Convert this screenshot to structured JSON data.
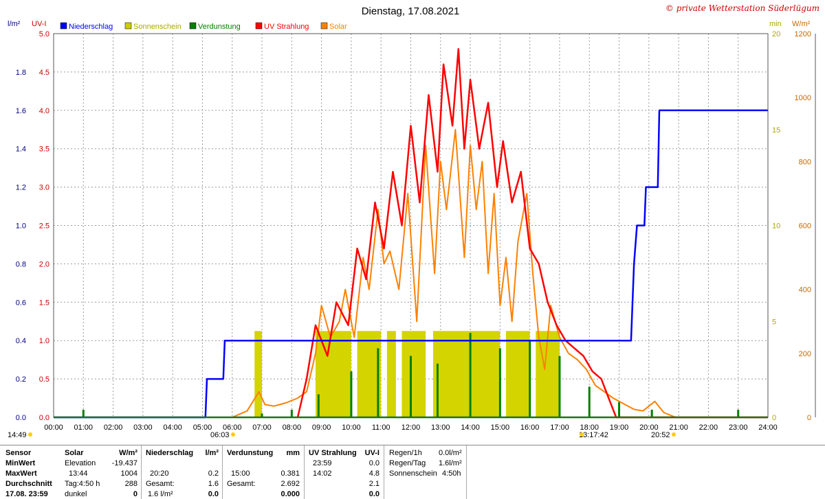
{
  "chart_data": {
    "type": "line",
    "title": "Dienstag, 17.08.2021",
    "copyright": "© private Wetterstation Süderlügum",
    "axis_units": {
      "rain": "l/m²",
      "uv": "UV-I",
      "sun": "min",
      "solar": "W/m²"
    },
    "legend": [
      {
        "name": "Niederschlag",
        "color": "#0000ff"
      },
      {
        "name": "Sonnenschein",
        "color": "#cccc00"
      },
      {
        "name": "Verdunstung",
        "color": "#008000"
      },
      {
        "name": "UV Strahlung",
        "color": "#ff0000"
      },
      {
        "name": "Solar",
        "color": "#ff8000"
      }
    ],
    "x_ticks": [
      "00:00",
      "01:00",
      "02:00",
      "03:00",
      "04:00",
      "05:00",
      "06:00",
      "07:00",
      "08:00",
      "09:00",
      "10:00",
      "11:00",
      "12:00",
      "13:00",
      "14:00",
      "15:00",
      "16:00",
      "17:00",
      "18:00",
      "19:00",
      "20:00",
      "21:00",
      "22:00",
      "23:00",
      "24:00"
    ],
    "y_rain_ticks": [
      "0.0",
      "0.2",
      "0.4",
      "0.6",
      "0.8",
      "1.0",
      "1.2",
      "1.4",
      "1.6",
      "1.8"
    ],
    "y_rain_range": [
      0,
      2.0
    ],
    "y_uv_ticks": [
      "0.0",
      "0.5",
      "1.0",
      "1.5",
      "2.0",
      "2.5",
      "3.0",
      "3.5",
      "4.0",
      "4.5",
      "5.0"
    ],
    "y_uv_range": [
      0,
      5
    ],
    "y_sun_ticks": [
      "0",
      "5",
      "10",
      "15",
      "20"
    ],
    "y_sun_range": [
      0,
      20
    ],
    "y_solar_ticks": [
      "0",
      "200",
      "400",
      "600",
      "800",
      "1000",
      "1200"
    ],
    "y_solar_range": [
      0,
      1200
    ],
    "astro": {
      "now": "14:49",
      "sunrise": "06:03",
      "noon": "13:17:42",
      "sunset": "20:52"
    },
    "series": {
      "rain": [
        [
          0,
          0
        ],
        [
          5.1,
          0
        ],
        [
          5.15,
          0.2
        ],
        [
          5.7,
          0.2
        ],
        [
          5.75,
          0.4
        ],
        [
          19.4,
          0.4
        ],
        [
          19.5,
          0.8
        ],
        [
          19.6,
          1.0
        ],
        [
          19.85,
          1.0
        ],
        [
          19.9,
          1.2
        ],
        [
          20.3,
          1.2
        ],
        [
          20.35,
          1.6
        ],
        [
          24,
          1.6
        ]
      ],
      "solar": [
        [
          6,
          0
        ],
        [
          6.5,
          20
        ],
        [
          6.9,
          80
        ],
        [
          7.1,
          40
        ],
        [
          7.4,
          35
        ],
        [
          7.8,
          45
        ],
        [
          8.2,
          60
        ],
        [
          8.5,
          80
        ],
        [
          8.8,
          200
        ],
        [
          9.0,
          350
        ],
        [
          9.3,
          250
        ],
        [
          9.6,
          300
        ],
        [
          9.8,
          400
        ],
        [
          10.1,
          250
        ],
        [
          10.4,
          500
        ],
        [
          10.6,
          400
        ],
        [
          10.9,
          650
        ],
        [
          11.1,
          480
        ],
        [
          11.3,
          520
        ],
        [
          11.6,
          400
        ],
        [
          11.9,
          700
        ],
        [
          12.2,
          300
        ],
        [
          12.5,
          850
        ],
        [
          12.8,
          450
        ],
        [
          13.0,
          800
        ],
        [
          13.2,
          650
        ],
        [
          13.5,
          900
        ],
        [
          13.8,
          500
        ],
        [
          14.0,
          850
        ],
        [
          14.2,
          650
        ],
        [
          14.4,
          800
        ],
        [
          14.6,
          450
        ],
        [
          14.8,
          700
        ],
        [
          15.0,
          350
        ],
        [
          15.2,
          500
        ],
        [
          15.4,
          300
        ],
        [
          15.6,
          550
        ],
        [
          15.9,
          700
        ],
        [
          16.1,
          450
        ],
        [
          16.3,
          250
        ],
        [
          16.5,
          150
        ],
        [
          16.7,
          350
        ],
        [
          17.0,
          250
        ],
        [
          17.3,
          200
        ],
        [
          17.6,
          180
        ],
        [
          17.9,
          150
        ],
        [
          18.2,
          100
        ],
        [
          18.5,
          80
        ],
        [
          18.8,
          60
        ],
        [
          19.2,
          40
        ],
        [
          19.5,
          25
        ],
        [
          19.8,
          20
        ],
        [
          20.2,
          50
        ],
        [
          20.5,
          15
        ],
        [
          20.9,
          0
        ],
        [
          24,
          0
        ]
      ],
      "uv": [
        [
          8.2,
          0
        ],
        [
          8.5,
          0.5
        ],
        [
          8.8,
          1.2
        ],
        [
          9.2,
          0.8
        ],
        [
          9.5,
          1.5
        ],
        [
          9.9,
          1.2
        ],
        [
          10.2,
          2.2
        ],
        [
          10.5,
          1.8
        ],
        [
          10.8,
          2.8
        ],
        [
          11.1,
          2.2
        ],
        [
          11.4,
          3.2
        ],
        [
          11.7,
          2.5
        ],
        [
          12.0,
          3.8
        ],
        [
          12.3,
          2.8
        ],
        [
          12.6,
          4.2
        ],
        [
          12.9,
          3.2
        ],
        [
          13.1,
          4.6
        ],
        [
          13.4,
          3.8
        ],
        [
          13.6,
          4.8
        ],
        [
          13.8,
          3.5
        ],
        [
          14.0,
          4.4
        ],
        [
          14.3,
          3.5
        ],
        [
          14.6,
          4.1
        ],
        [
          14.9,
          3.0
        ],
        [
          15.1,
          3.6
        ],
        [
          15.4,
          2.8
        ],
        [
          15.7,
          3.2
        ],
        [
          16.0,
          2.2
        ],
        [
          16.3,
          2.0
        ],
        [
          16.6,
          1.5
        ],
        [
          16.9,
          1.2
        ],
        [
          17.2,
          1.0
        ],
        [
          17.5,
          0.9
        ],
        [
          17.8,
          0.8
        ],
        [
          18.1,
          0.6
        ],
        [
          18.4,
          0.5
        ],
        [
          18.6,
          0.3
        ],
        [
          18.9,
          0
        ],
        [
          24,
          0
        ]
      ],
      "evaporation_bars": [
        [
          1.0,
          0.1
        ],
        [
          7.0,
          0.05
        ],
        [
          8.0,
          0.1
        ],
        [
          8.9,
          0.3
        ],
        [
          10.0,
          0.6
        ],
        [
          10.9,
          0.9
        ],
        [
          12.0,
          0.8
        ],
        [
          12.9,
          0.7
        ],
        [
          14.0,
          1.1
        ],
        [
          15.0,
          0.9
        ],
        [
          16.0,
          1.0
        ],
        [
          17.0,
          0.8
        ],
        [
          18.0,
          0.4
        ],
        [
          19.0,
          0.2
        ],
        [
          20.1,
          0.1
        ],
        [
          23.0,
          0.1
        ]
      ],
      "sunshine_spans": [
        [
          6.75,
          7.0
        ],
        [
          8.8,
          10.0
        ],
        [
          10.2,
          11.0
        ],
        [
          11.2,
          11.5
        ],
        [
          11.7,
          12.5
        ],
        [
          12.75,
          15.0
        ],
        [
          15.2,
          16.0
        ],
        [
          16.2,
          17.0
        ]
      ],
      "sunshine_height": 4.5
    }
  },
  "stats": {
    "solar": {
      "header_label": "Sensor",
      "header_name": "Solar",
      "header_unit": "W/m²",
      "rows": [
        {
          "label": "MinWert",
          "a": "Elevation",
          "b": "-19.437"
        },
        {
          "label": "MaxWert",
          "a": "13:44",
          "b": "1004"
        },
        {
          "label": "Durchschnitt",
          "a": "Tag:4:50 h",
          "b": "288"
        },
        {
          "label": "17.08. 23:59",
          "a": "dunkel",
          "b": "0"
        }
      ]
    },
    "rain": {
      "header_name": "Niederschlag",
      "header_unit": "l/m²",
      "rows": [
        {
          "a": "",
          "b": ""
        },
        {
          "a": "20:20",
          "b": "0.2"
        },
        {
          "a": "Gesamt:",
          "b": "1.6"
        },
        {
          "a": "1.6 l/m²",
          "b": "0.0"
        }
      ]
    },
    "evap": {
      "header_name": "Verdunstung",
      "header_unit": "mm",
      "rows": [
        {
          "a": "",
          "b": ""
        },
        {
          "a": "15:00",
          "b": "0.381"
        },
        {
          "a": "Gesamt:",
          "b": "2.692"
        },
        {
          "a": "",
          "b": "0.000"
        }
      ]
    },
    "uv": {
      "header_name": "UV Strahlung",
      "header_unit": "UV-I",
      "rows": [
        {
          "a": "23:59",
          "b": "0.0"
        },
        {
          "a": "14:02",
          "b": "4.8"
        },
        {
          "a": "",
          "b": "2.1"
        },
        {
          "a": "",
          "b": "0.0"
        }
      ]
    },
    "extra": [
      {
        "label": "Regen/1h",
        "value": "0.0l/m²"
      },
      {
        "label": "Regen/Tag",
        "value": "1.6l/m²"
      },
      {
        "label": "Sonnenschein",
        "value": "4:50h"
      }
    ]
  }
}
